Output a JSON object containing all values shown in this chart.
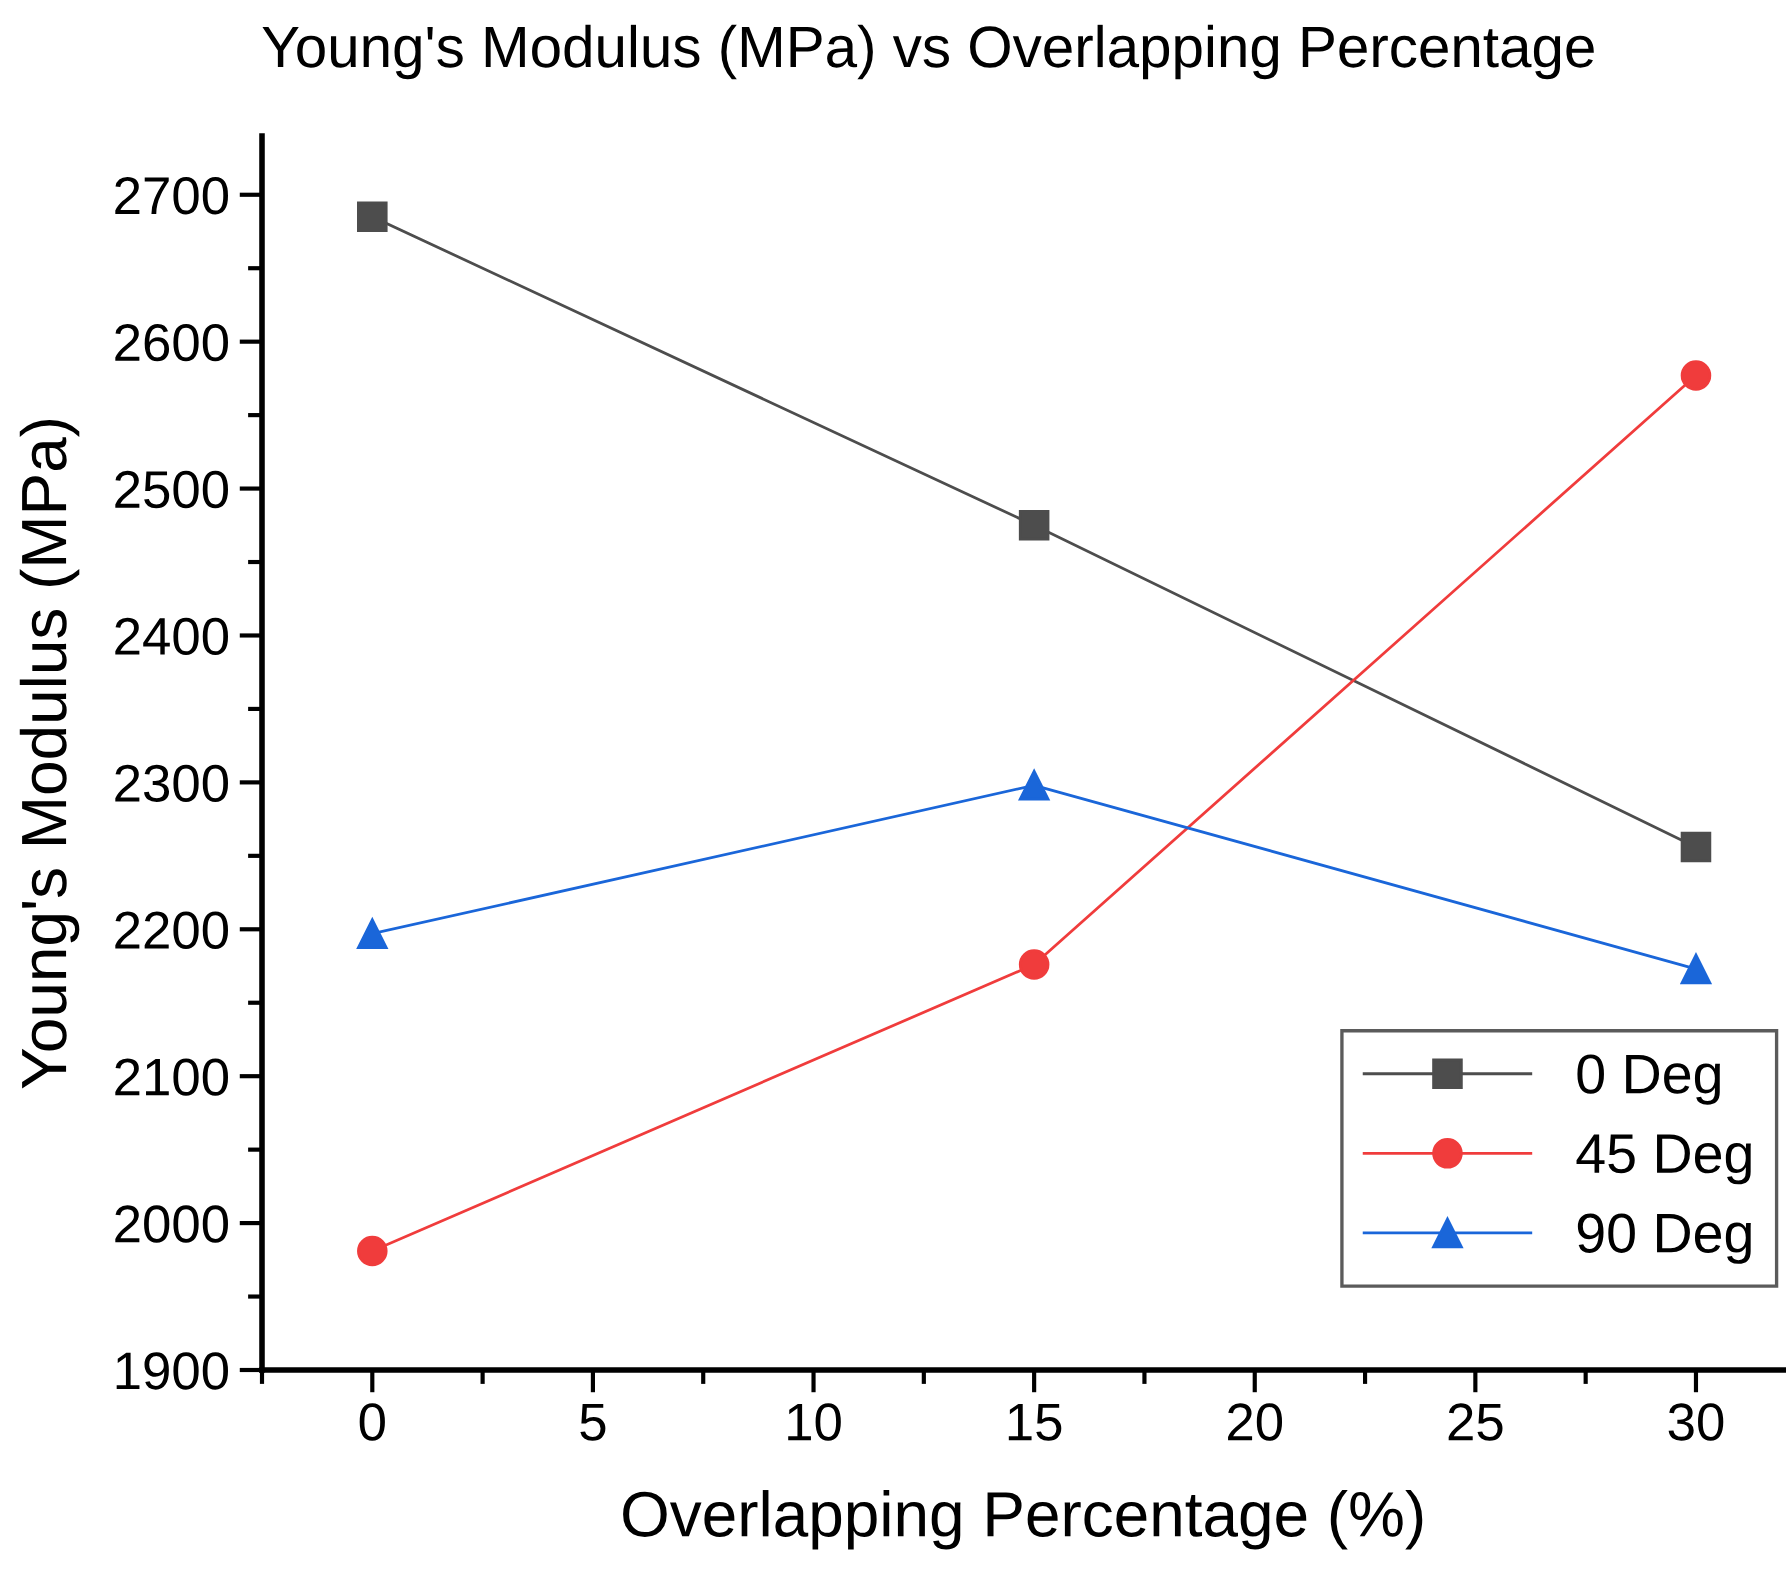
{
  "chart_data": {
    "type": "line",
    "title": "Young's Modulus (MPa) vs Overlapping Percentage",
    "xlabel": "Overlapping Percentage (%)",
    "ylabel": "Young's Modulus (MPa)",
    "x": [
      0,
      15,
      30
    ],
    "series": [
      {
        "name": "0 Deg",
        "color": "#4d4d4d",
        "marker": "square",
        "values": [
          2685,
          2475,
          2256
        ]
      },
      {
        "name": "45 Deg",
        "color": "#f03c3c",
        "marker": "circle",
        "values": [
          1981,
          2176,
          2577
        ]
      },
      {
        "name": "90 Deg",
        "color": "#1a66d9",
        "marker": "triangle",
        "values": [
          2197,
          2298,
          2173
        ]
      }
    ],
    "xlim": [
      -2.5,
      32
    ],
    "xticks": [
      0,
      5,
      10,
      15,
      20,
      25,
      30
    ],
    "ylim": [
      1900,
      2740
    ],
    "yticks": [
      1900,
      2000,
      2100,
      2200,
      2300,
      2400,
      2500,
      2600,
      2700
    ],
    "grid": false,
    "legend": "bottom right",
    "line_style": "solid"
  }
}
